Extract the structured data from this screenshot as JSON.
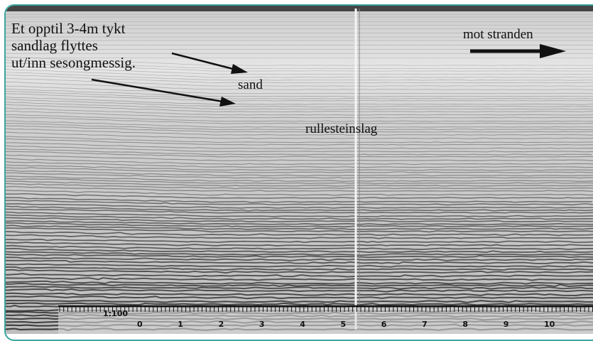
{
  "annotations": {
    "left_note": [
      "Et opptil 3-4m tykt",
      "sandlag flyttes",
      "ut/inn sesongmessig."
    ],
    "direction": "mot stranden",
    "sand": "sand",
    "gravel": "rullesteinslag"
  },
  "scale": {
    "ratio": "1:100",
    "labels": [
      "0",
      "1",
      "2",
      "3",
      "4",
      "5",
      "6",
      "7",
      "8",
      "9",
      "10"
    ]
  }
}
